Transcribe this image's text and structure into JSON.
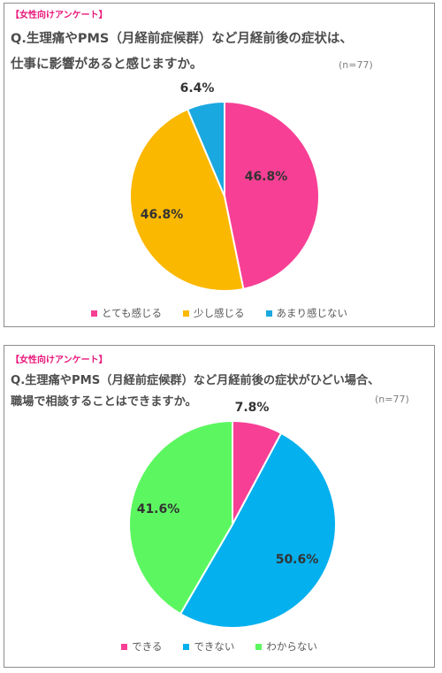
{
  "chart_data": [
    {
      "type": "pie",
      "tag": "【女性向けアンケート】",
      "title_lines": [
        "Q.生理痛やPMS（月経前症候群）など月経前後の症状は、",
        "仕事に影響があると感じますか。"
      ],
      "n_label": "(n=77)",
      "slices": [
        {
          "label": "とても感じる",
          "value": 46.8,
          "value_label": "46.8%",
          "color": "#f73f95"
        },
        {
          "label": "少し感じる",
          "value": 46.8,
          "value_label": "46.8%",
          "color": "#fbb800"
        },
        {
          "label": "あまり感じない",
          "value": 6.4,
          "value_label": "6.4%",
          "color": "#1aa8e0"
        }
      ]
    },
    {
      "type": "pie",
      "tag": "【女性向けアンケート】",
      "title_lines": [
        "Q.生理痛やPMS（月経前症候群）など月経前後の症状がひどい場合、",
        "職場で相談することはできますか。"
      ],
      "n_label": "(n=77)",
      "slices": [
        {
          "label": "できる",
          "value": 7.8,
          "value_label": "7.8%",
          "color": "#f73f95"
        },
        {
          "label": "できない",
          "value": 50.6,
          "value_label": "50.6%",
          "color": "#05b0ee"
        },
        {
          "label": "わからない",
          "value": 41.6,
          "value_label": "41.6%",
          "color": "#5cf760"
        }
      ]
    }
  ]
}
